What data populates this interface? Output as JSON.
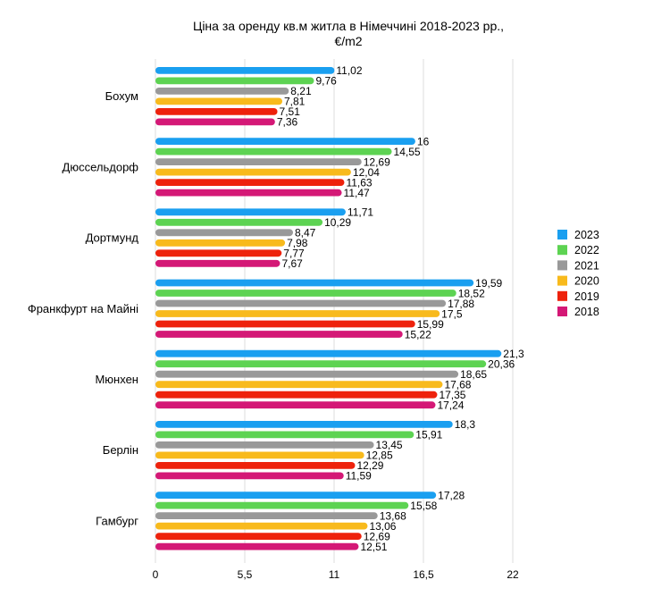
{
  "chart_data": {
    "type": "bar",
    "orientation": "horizontal",
    "title": "Ціна за оренду кв.м житла в Німеччині 2018-2023 рр.,",
    "subtitle": "€/m2",
    "categories": [
      "Бохум",
      "Дюссельдорф",
      "Дортмунд",
      "Франкфурт на Майні",
      "Мюнхен",
      "Берлін",
      "Гамбург"
    ],
    "series": [
      {
        "name": "2023",
        "color": "#1a9ff0",
        "values": [
          11.02,
          16,
          11.71,
          19.59,
          21.3,
          18.3,
          17.28
        ],
        "labels": [
          "11,02",
          "16",
          "11,71",
          "19,59",
          "21,3",
          "18,3",
          "17,28"
        ]
      },
      {
        "name": "2022",
        "color": "#5dd352",
        "values": [
          9.76,
          14.55,
          10.29,
          18.52,
          20.36,
          15.91,
          15.58
        ],
        "labels": [
          "9,76",
          "14,55",
          "10,29",
          "18,52",
          "20,36",
          "15,91",
          "15,58"
        ]
      },
      {
        "name": "2021",
        "color": "#999999",
        "values": [
          8.21,
          12.69,
          8.47,
          17.88,
          18.65,
          13.45,
          13.68
        ],
        "labels": [
          "8,21",
          "12,69",
          "8,47",
          "17,88",
          "18,65",
          "13,45",
          "13,68"
        ]
      },
      {
        "name": "2020",
        "color": "#f8ba1c",
        "values": [
          7.81,
          12.04,
          7.98,
          17.5,
          17.68,
          12.85,
          13.06
        ],
        "labels": [
          "7,81",
          "12,04",
          "7,98",
          "17,5",
          "17,68",
          "12,85",
          "13,06"
        ]
      },
      {
        "name": "2019",
        "color": "#ee220c",
        "values": [
          7.51,
          11.63,
          7.77,
          15.99,
          17.35,
          12.29,
          12.69
        ],
        "labels": [
          "7,51",
          "11,63",
          "7,77",
          "15,99",
          "17,35",
          "12,29",
          "12,69"
        ]
      },
      {
        "name": "2018",
        "color": "#d41876",
        "values": [
          7.36,
          11.47,
          7.67,
          15.22,
          17.24,
          11.59,
          12.51
        ],
        "labels": [
          "7,36",
          "11,47",
          "7,67",
          "15,22",
          "17,24",
          "11,59",
          "12,51"
        ]
      }
    ],
    "xlim": [
      0,
      22
    ],
    "xticks": [
      0,
      5.5,
      11,
      16.5,
      22
    ],
    "xtick_labels": [
      "0",
      "5,5",
      "11",
      "16,5",
      "22"
    ],
    "legend_position": "right",
    "legend_order": [
      "2023",
      "2022",
      "2021",
      "2020",
      "2019",
      "2018"
    ],
    "grid": "vertical",
    "grid_color": "#dcdcdc",
    "xlabel": "",
    "ylabel": ""
  }
}
